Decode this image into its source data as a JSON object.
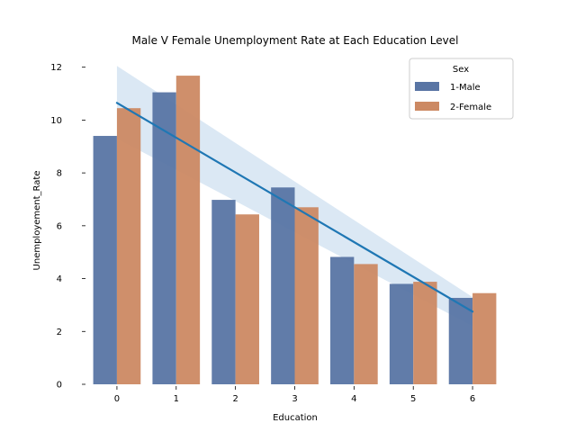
{
  "chart_data": {
    "type": "bar",
    "title": "Male V Female Unemployment Rate at Each Education Level",
    "xlabel": "Education",
    "ylabel": "Unemployement_Rate",
    "categories": [
      "0",
      "1",
      "2",
      "3",
      "4",
      "5",
      "6"
    ],
    "ylim": [
      0,
      12.5
    ],
    "yticks": [
      0,
      2,
      4,
      6,
      8,
      10,
      12
    ],
    "series": [
      {
        "name": "1-Male",
        "color": "#5975a4",
        "values": [
          9.4,
          11.05,
          6.98,
          7.45,
          4.82,
          3.8,
          3.27
        ]
      },
      {
        "name": "2-Female",
        "color": "#cc8963",
        "values": [
          10.45,
          11.68,
          6.43,
          6.7,
          4.55,
          3.88,
          3.45
        ]
      }
    ],
    "trend_line": {
      "color": "#1f77b4",
      "band_color": "#c8dbee",
      "x": [
        0,
        6
      ],
      "y": [
        10.65,
        2.75
      ],
      "band_lower": [
        9.3,
        2.2
      ],
      "band_upper": [
        12.05,
        3.3
      ]
    },
    "legend": {
      "title": "Sex",
      "position": "top-right",
      "entries": [
        "1-Male",
        "2-Female"
      ]
    }
  }
}
